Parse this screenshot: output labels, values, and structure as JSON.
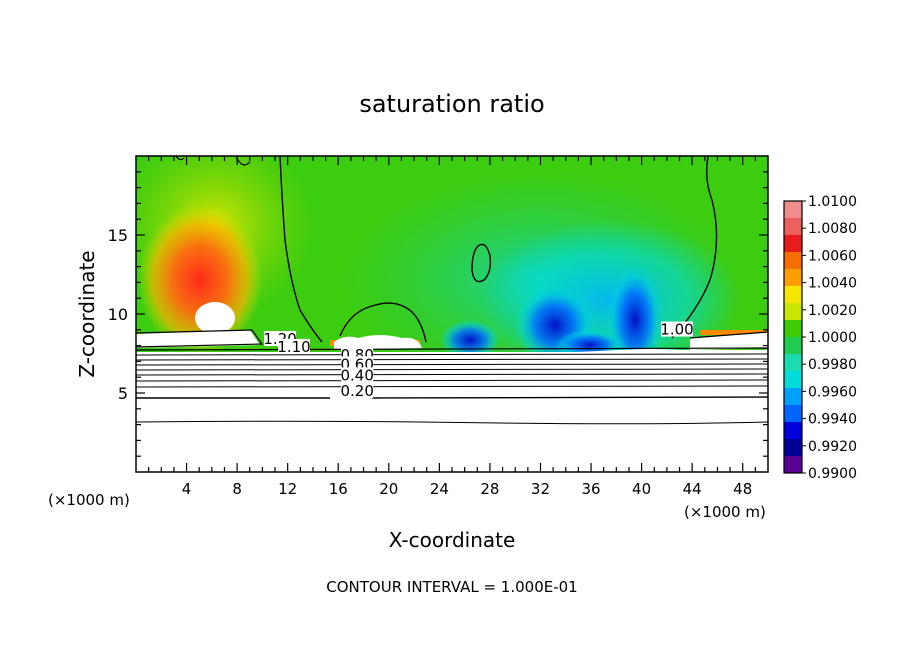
{
  "chart_data": {
    "type": "heatmap",
    "title": "saturation ratio",
    "xlabel": "X-coordinate",
    "ylabel": "Z-coordinate",
    "x_unit": "(×1000 m)",
    "xlim": [
      0,
      50
    ],
    "ylim": [
      0,
      20
    ],
    "x_ticks": [
      4,
      8,
      12,
      16,
      20,
      24,
      28,
      32,
      36,
      40,
      44,
      48
    ],
    "y_ticks": [
      5,
      10,
      15
    ],
    "footer": "CONTOUR INTERVAL = 1.000E-01",
    "colorbar": {
      "levels": [
        "1.0100",
        "1.0080",
        "1.0060",
        "1.0040",
        "1.0020",
        "1.0000",
        "0.9980",
        "0.9960",
        "0.9940",
        "0.9920",
        "0.9900"
      ],
      "colors": [
        "#f08c8c",
        "#ec6060",
        "#e81c1c",
        "#f46e00",
        "#ff9e00",
        "#f5e600",
        "#c9e600",
        "#3ecc00",
        "#22cc50",
        "#1adcb0",
        "#00dcdc",
        "#00a0ff",
        "#0064ff",
        "#0000dc",
        "#000096",
        "#5a0096"
      ]
    },
    "contour_labels": [
      {
        "text": "1.20",
        "x": 11.4,
        "z": 8.1
      },
      {
        "text": "1.10",
        "x": 12.5,
        "z": 7.6
      },
      {
        "text": "0.80",
        "x": 17.5,
        "z": 7.1
      },
      {
        "text": "0.60",
        "x": 17.5,
        "z": 6.5
      },
      {
        "text": "0.40",
        "x": 17.5,
        "z": 5.8
      },
      {
        "text": "0.20",
        "x": 17.5,
        "z": 4.8
      },
      {
        "text": "1.00",
        "x": 42.8,
        "z": 8.7
      }
    ]
  }
}
